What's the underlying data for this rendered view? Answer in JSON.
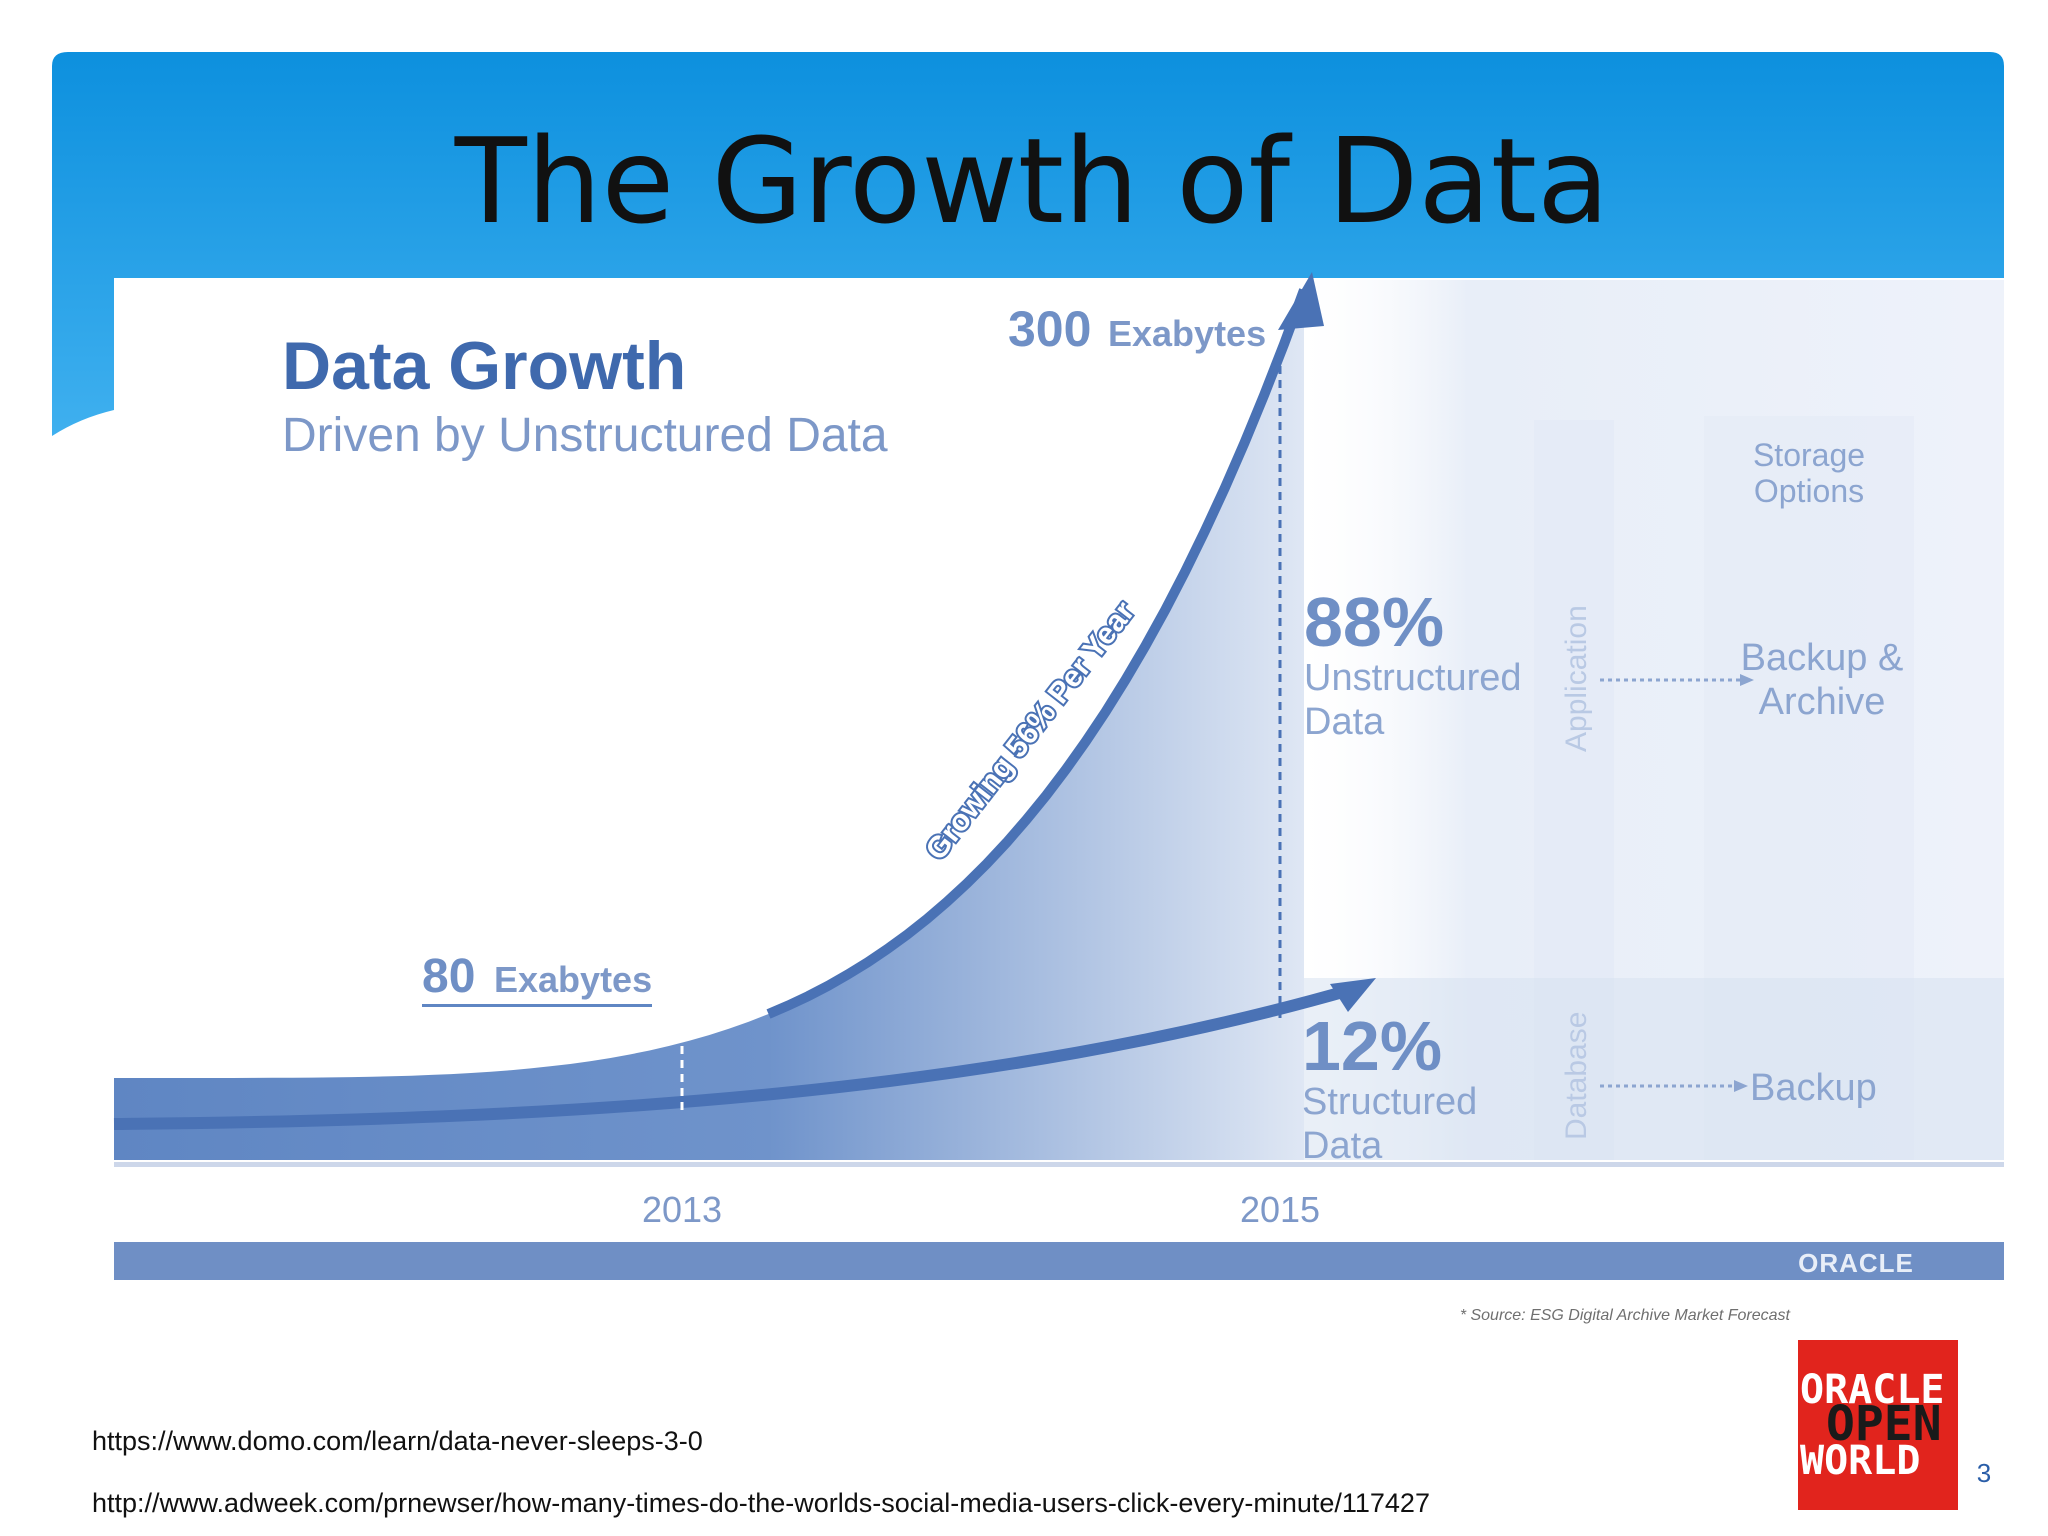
{
  "slide": {
    "title": "The Growth of Data",
    "page_number": "3",
    "links": [
      "https://www.domo.com/learn/data-never-sleeps-3-0",
      "http://www.adweek.com/prnewser/how-many-times-do-the-worlds-social-media-users-click-every-minute/117427"
    ],
    "logo": {
      "line1": "ORACLE",
      "line2": "OPEN",
      "line3": "WORLD"
    }
  },
  "infographic": {
    "heading": "Data Growth",
    "subheading": "Driven by Unstructured Data",
    "growth_label": "Growing 56% Per Year",
    "label_2013_value": "80",
    "label_2013_unit": "Exabytes",
    "label_2015_value": "300",
    "label_2015_unit": "Exabytes",
    "unstructured": {
      "percent": "88%",
      "line1": "Unstructured",
      "line2": "Data"
    },
    "structured": {
      "percent": "12%",
      "line1": "Structured",
      "line2": "Data"
    },
    "layer_application": "Application",
    "layer_database": "Database",
    "storage_heading_line1": "Storage",
    "storage_heading_line2": "Options",
    "storage_option_1_line1": "Backup &",
    "storage_option_1_line2": "Archive",
    "storage_option_2": "Backup",
    "footer_brand": "ORACLE",
    "source_note": "* Source: ESG Digital Archive Market Forecast",
    "colors": {
      "primary": "#4a72b5",
      "light": "#dbe4f3",
      "header": "#1b9ae2"
    }
  },
  "chart_data": {
    "type": "area",
    "x": [
      "2013",
      "2015"
    ],
    "series": [
      {
        "values": [
          80,
          300
        ]
      }
    ],
    "ylabel": "",
    "xlabel": "",
    "y_unit": "Exabytes",
    "growth_rate": "56% Per Year",
    "composition_2015": [
      {
        "label": "Unstructured Data",
        "percent": 88
      },
      {
        "label": "Structured Data",
        "percent": 12
      }
    ]
  }
}
